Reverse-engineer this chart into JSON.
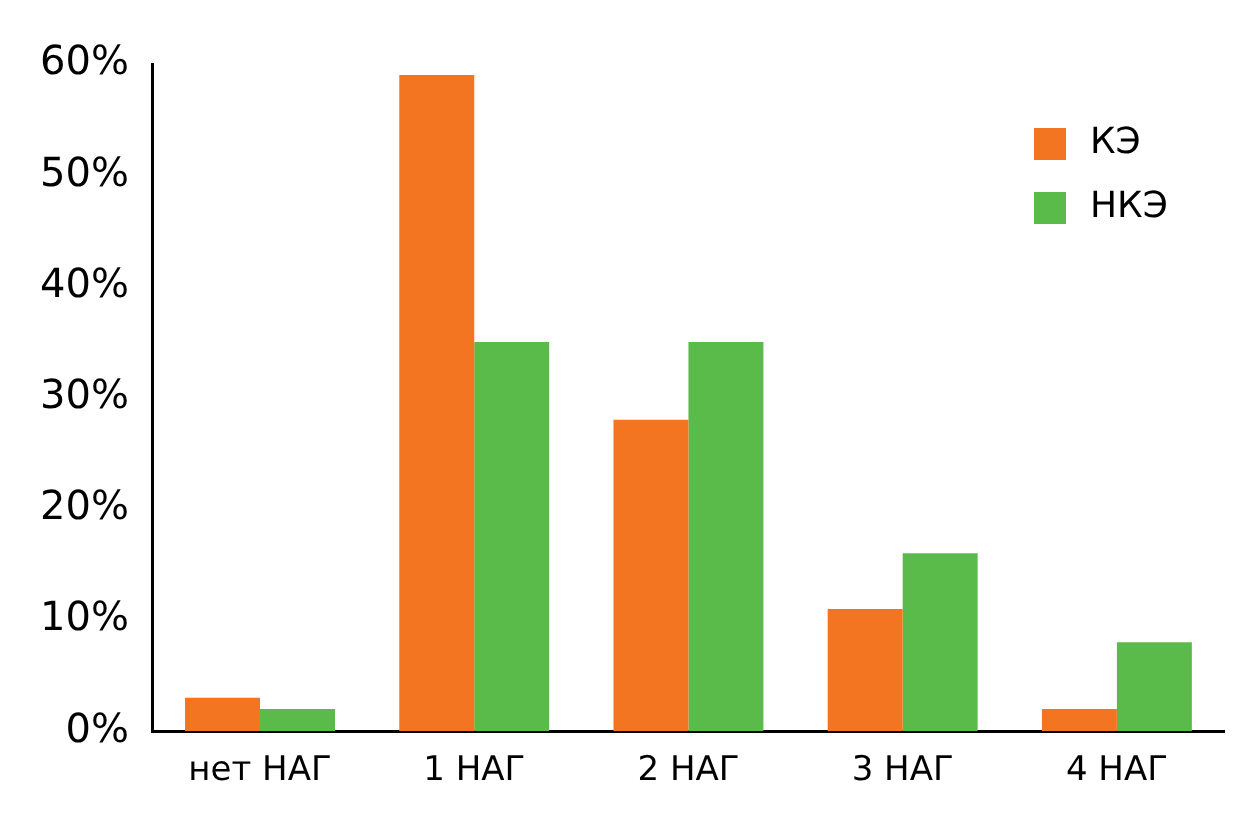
{
  "chart_data": {
    "type": "bar",
    "categories": [
      "нет НАГ",
      "1 НАГ",
      "2 НАГ",
      "3 НАГ",
      "4 НАГ"
    ],
    "series": [
      {
        "name": "КЭ",
        "color": "#f47521",
        "values": [
          3,
          59,
          28,
          11,
          2
        ]
      },
      {
        "name": "НКЭ",
        "color": "#5bbb4a",
        "values": [
          2,
          35,
          35,
          16,
          8
        ]
      }
    ],
    "ylim": [
      0,
      60
    ],
    "yticks": [
      {
        "value": 0,
        "label": "0%"
      },
      {
        "value": 10,
        "label": "10%"
      },
      {
        "value": 20,
        "label": "20%"
      },
      {
        "value": 30,
        "label": "30%"
      },
      {
        "value": 40,
        "label": "40%"
      },
      {
        "value": 50,
        "label": "50%"
      },
      {
        "value": 60,
        "label": "60%"
      }
    ],
    "grid": false,
    "legend": "top right"
  }
}
